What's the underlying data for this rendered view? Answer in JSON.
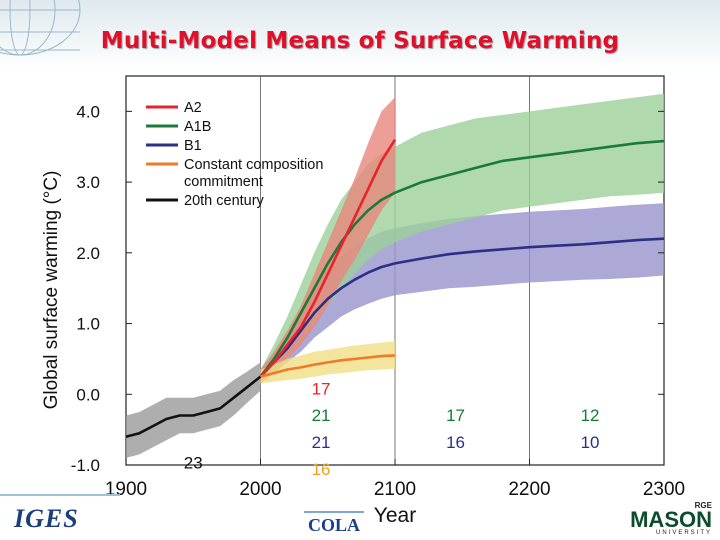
{
  "slide": {
    "title": "Multi-Model Means of Surface Warming"
  },
  "logos": {
    "left": "IGES",
    "center": "COLA",
    "right_top": "RGE",
    "right_main": "MASON",
    "right_sub": "UNIVERSITY"
  },
  "chart_data": {
    "type": "line",
    "xlabel": "Year",
    "ylabel": "Global surface warming (°C)",
    "xlim": [
      1900,
      2300
    ],
    "ylim": [
      -1.0,
      4.5
    ],
    "xticks": [
      1900,
      2000,
      2100,
      2200,
      2300
    ],
    "yticks": [
      -1.0,
      0.0,
      1.0,
      2.0,
      3.0,
      4.0
    ],
    "ytick_labels": [
      "-1.0",
      "0.0",
      "1.0",
      "2.0",
      "3.0",
      "4.0"
    ],
    "vertical_lines": [
      2000,
      2100,
      2200
    ],
    "legend": "top-left",
    "series": [
      {
        "name": "A2",
        "color": "#e8232a",
        "band_color": "#e9867c",
        "x": [
          2000,
          2010,
          2020,
          2030,
          2040,
          2050,
          2060,
          2070,
          2080,
          2090,
          2100
        ],
        "y": [
          0.25,
          0.45,
          0.7,
          0.95,
          1.3,
          1.7,
          2.1,
          2.5,
          2.9,
          3.3,
          3.6
        ],
        "lower": [
          0.15,
          0.3,
          0.5,
          0.7,
          0.95,
          1.25,
          1.6,
          1.9,
          2.25,
          2.6,
          2.85
        ],
        "upper": [
          0.35,
          0.6,
          0.9,
          1.25,
          1.7,
          2.15,
          2.6,
          3.05,
          3.55,
          4.0,
          4.2
        ]
      },
      {
        "name": "A1B",
        "color": "#1a7a3a",
        "band_color": "#9ccf9a",
        "x": [
          2000,
          2010,
          2020,
          2030,
          2040,
          2050,
          2060,
          2070,
          2080,
          2090,
          2100,
          2120,
          2140,
          2160,
          2180,
          2200,
          2220,
          2240,
          2260,
          2280,
          2300
        ],
        "y": [
          0.25,
          0.5,
          0.8,
          1.15,
          1.5,
          1.85,
          2.15,
          2.4,
          2.6,
          2.75,
          2.85,
          3.0,
          3.1,
          3.2,
          3.3,
          3.35,
          3.4,
          3.45,
          3.5,
          3.55,
          3.58
        ],
        "lower": [
          0.15,
          0.3,
          0.5,
          0.75,
          1.0,
          1.25,
          1.5,
          1.7,
          1.9,
          2.05,
          2.15,
          2.3,
          2.4,
          2.5,
          2.6,
          2.65,
          2.7,
          2.75,
          2.8,
          2.82,
          2.85
        ],
        "upper": [
          0.35,
          0.7,
          1.1,
          1.55,
          2.0,
          2.4,
          2.75,
          3.0,
          3.25,
          3.4,
          3.5,
          3.7,
          3.8,
          3.9,
          3.95,
          4.0,
          4.05,
          4.1,
          4.15,
          4.2,
          4.25
        ]
      },
      {
        "name": "B1",
        "color": "#2b2f86",
        "band_color": "#9794cc",
        "x": [
          2000,
          2010,
          2020,
          2030,
          2040,
          2050,
          2060,
          2070,
          2080,
          2090,
          2100,
          2120,
          2140,
          2160,
          2180,
          2200,
          2220,
          2240,
          2260,
          2280,
          2300
        ],
        "y": [
          0.25,
          0.45,
          0.65,
          0.9,
          1.15,
          1.35,
          1.5,
          1.62,
          1.72,
          1.8,
          1.85,
          1.92,
          1.98,
          2.02,
          2.05,
          2.08,
          2.1,
          2.12,
          2.15,
          2.18,
          2.2
        ],
        "lower": [
          0.15,
          0.3,
          0.45,
          0.6,
          0.8,
          0.95,
          1.1,
          1.2,
          1.28,
          1.35,
          1.4,
          1.45,
          1.5,
          1.52,
          1.55,
          1.58,
          1.6,
          1.62,
          1.63,
          1.65,
          1.68
        ],
        "upper": [
          0.35,
          0.6,
          0.85,
          1.2,
          1.5,
          1.75,
          1.95,
          2.1,
          2.2,
          2.3,
          2.35,
          2.42,
          2.48,
          2.52,
          2.55,
          2.58,
          2.6,
          2.62,
          2.65,
          2.68,
          2.7
        ]
      },
      {
        "name": "Constant composition commitment",
        "color": "#f07a2a",
        "band_color": "#f1df86",
        "x": [
          2000,
          2010,
          2020,
          2030,
          2040,
          2050,
          2060,
          2070,
          2080,
          2090,
          2100
        ],
        "y": [
          0.25,
          0.3,
          0.35,
          0.38,
          0.42,
          0.45,
          0.48,
          0.5,
          0.52,
          0.54,
          0.55
        ],
        "lower": [
          0.15,
          0.18,
          0.2,
          0.22,
          0.25,
          0.28,
          0.3,
          0.32,
          0.34,
          0.35,
          0.36
        ],
        "upper": [
          0.35,
          0.42,
          0.5,
          0.55,
          0.6,
          0.63,
          0.66,
          0.69,
          0.71,
          0.73,
          0.75
        ]
      },
      {
        "name": "20th century",
        "color": "#111111",
        "band_color": "#9a9a9a",
        "x": [
          1900,
          1910,
          1920,
          1930,
          1940,
          1950,
          1960,
          1970,
          1980,
          1990,
          2000
        ],
        "y": [
          -0.6,
          -0.55,
          -0.45,
          -0.35,
          -0.3,
          -0.3,
          -0.25,
          -0.2,
          -0.05,
          0.1,
          0.25
        ],
        "lower": [
          -0.9,
          -0.85,
          -0.75,
          -0.65,
          -0.55,
          -0.55,
          -0.5,
          -0.45,
          -0.3,
          -0.12,
          0.05
        ],
        "upper": [
          -0.3,
          -0.25,
          -0.15,
          -0.05,
          -0.05,
          -0.05,
          0.0,
          0.05,
          0.2,
          0.32,
          0.45
        ]
      }
    ],
    "annotations": [
      {
        "text": "17",
        "x": 2045,
        "y": 0.0,
        "color": "#e8232a"
      },
      {
        "text": "21",
        "x": 2045,
        "y": -0.38,
        "color": "#1a7a3a"
      },
      {
        "text": "21",
        "x": 2045,
        "y": -0.76,
        "color": "#2b2f86"
      },
      {
        "text": "16",
        "x": 2045,
        "y": -1.14,
        "color": "#e8a020"
      },
      {
        "text": "17",
        "x": 2145,
        "y": -0.38,
        "color": "#1a7a3a"
      },
      {
        "text": "16",
        "x": 2145,
        "y": -0.76,
        "color": "#2b2f86"
      },
      {
        "text": "12",
        "x": 2245,
        "y": -0.38,
        "color": "#1a7a3a"
      },
      {
        "text": "10",
        "x": 2245,
        "y": -0.76,
        "color": "#2b2f86"
      },
      {
        "text": "23",
        "x": 1950,
        "y": -1.05,
        "color": "#111111"
      }
    ]
  }
}
